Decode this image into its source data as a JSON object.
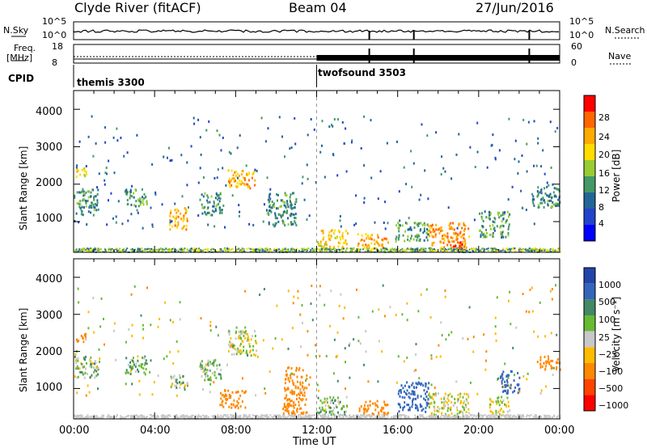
{
  "header": {
    "site": "Clyde River (fitACF)",
    "beam": "Beam 04",
    "date": "27/Jun/2016"
  },
  "panels": {
    "nsky_label": "N.Sky",
    "nsky_ticks": [
      "10^5",
      "10^0"
    ],
    "nsearch_label": "N.Search",
    "nsearch_ticks": [
      "10^5",
      "10^0"
    ],
    "freq_label": "Freq.",
    "freq_unit": "[MHz]",
    "freq_ticks": [
      "18",
      "8"
    ],
    "nave_label": "Nave",
    "nave_ticks": [
      "60",
      "0"
    ],
    "cpid_label": "CPID",
    "cpid_segments": [
      {
        "name": "themis 3300",
        "start_hour": 0
      },
      {
        "name": "twofsound 3503",
        "start_hour": 12
      }
    ]
  },
  "axes": {
    "xlabel": "Time UT",
    "ylabel": "Slant Range [km]",
    "xticks": [
      "00:00",
      "04:00",
      "08:00",
      "12:00",
      "16:00",
      "20:00",
      "00:00"
    ],
    "yticks": [
      "1000",
      "2000",
      "3000",
      "4000"
    ]
  },
  "colorbars": {
    "power": {
      "label": "Power [dB]",
      "ticks": [
        "28",
        "24",
        "20",
        "16",
        "12",
        "8",
        "4"
      ],
      "colors": [
        "#ff0000",
        "#ff6600",
        "#ffaa00",
        "#ffdd00",
        "#99cc33",
        "#449966",
        "#226699",
        "#2244cc",
        "#0000ff"
      ]
    },
    "velocity": {
      "label": "Velocity [m s⁻¹]",
      "ticks": [
        "1000",
        "500",
        "100",
        "25",
        "−25",
        "−100",
        "−500",
        "−1000"
      ],
      "colors": [
        "#2244aa",
        "#3366bb",
        "#448866",
        "#66bb33",
        "#c8c8c8",
        "#ffbb00",
        "#ff8800",
        "#ff4400",
        "#ff0000"
      ]
    }
  },
  "chart_data": [
    {
      "type": "heatmap",
      "title": "Power",
      "xlabel": "Time UT",
      "ylabel": "Slant Range [km]",
      "xlim_hours": [
        0,
        24
      ],
      "ylim_km": [
        180,
        4500
      ],
      "clim_db": [
        0,
        30
      ],
      "patches": [
        {
          "t": [
            0.0,
            0.6
          ],
          "r": [
            2200,
            2500
          ],
          "v": 18
        },
        {
          "t": [
            0.0,
            1.2
          ],
          "r": [
            1200,
            1900
          ],
          "v": 10
        },
        {
          "t": [
            2.5,
            3.6
          ],
          "r": [
            1400,
            1900
          ],
          "v": 12
        },
        {
          "t": [
            4.7,
            5.6
          ],
          "r": [
            800,
            1400
          ],
          "v": 22
        },
        {
          "t": [
            6.2,
            7.3
          ],
          "r": [
            1200,
            1800
          ],
          "v": 10
        },
        {
          "t": [
            7.6,
            9.0
          ],
          "r": [
            1900,
            2400
          ],
          "v": 22
        },
        {
          "t": [
            9.5,
            11.0
          ],
          "r": [
            900,
            1800
          ],
          "v": 10
        },
        {
          "t": [
            12.0,
            13.5
          ],
          "r": [
            300,
            800
          ],
          "v": 20
        },
        {
          "t": [
            14.0,
            15.5
          ],
          "r": [
            300,
            700
          ],
          "v": 22
        },
        {
          "t": [
            15.8,
            17.5
          ],
          "r": [
            500,
            1000
          ],
          "v": 12
        },
        {
          "t": [
            17.5,
            19.5
          ],
          "r": [
            300,
            1000
          ],
          "v": 24
        },
        {
          "t": [
            18.7,
            19.3
          ],
          "r": [
            250,
            500
          ],
          "v": 29
        },
        {
          "t": [
            20.0,
            21.5
          ],
          "r": [
            600,
            1300
          ],
          "v": 12
        },
        {
          "t": [
            22.5,
            24.0
          ],
          "r": [
            1400,
            2000
          ],
          "v": 10
        }
      ]
    },
    {
      "type": "heatmap",
      "title": "Velocity",
      "xlabel": "Time UT",
      "ylabel": "Slant Range [km]",
      "xlim_hours": [
        0,
        24
      ],
      "ylim_km": [
        180,
        4500
      ],
      "clim_ms": [
        -1000,
        1000
      ],
      "patches": [
        {
          "t": [
            0.0,
            0.6
          ],
          "r": [
            2200,
            2500
          ],
          "v": -300
        },
        {
          "t": [
            0.0,
            1.2
          ],
          "r": [
            1300,
            1900
          ],
          "v": 60
        },
        {
          "t": [
            2.5,
            3.6
          ],
          "r": [
            1400,
            1900
          ],
          "v": 60
        },
        {
          "t": [
            4.7,
            5.6
          ],
          "r": [
            1000,
            1400
          ],
          "v": 60
        },
        {
          "t": [
            6.2,
            7.3
          ],
          "r": [
            1200,
            1800
          ],
          "v": 60
        },
        {
          "t": [
            7.2,
            8.5
          ],
          "r": [
            500,
            1000
          ],
          "v": -300
        },
        {
          "t": [
            7.6,
            9.0
          ],
          "r": [
            1900,
            2600
          ],
          "v": 0
        },
        {
          "t": [
            10.3,
            11.5
          ],
          "r": [
            300,
            1600
          ],
          "v": -300
        },
        {
          "t": [
            12.0,
            13.5
          ],
          "r": [
            300,
            800
          ],
          "v": 50
        },
        {
          "t": [
            14.0,
            15.5
          ],
          "r": [
            300,
            700
          ],
          "v": -200
        },
        {
          "t": [
            16.0,
            17.5
          ],
          "r": [
            400,
            1200
          ],
          "v": 600
        },
        {
          "t": [
            17.5,
            19.5
          ],
          "r": [
            250,
            900
          ],
          "v": 0
        },
        {
          "t": [
            20.5,
            21.5
          ],
          "r": [
            300,
            800
          ],
          "v": 0
        },
        {
          "t": [
            21.0,
            22.0
          ],
          "r": [
            900,
            1500
          ],
          "v": 600
        },
        {
          "t": [
            23.0,
            24.0
          ],
          "r": [
            1500,
            1900
          ],
          "v": -300
        }
      ]
    }
  ]
}
